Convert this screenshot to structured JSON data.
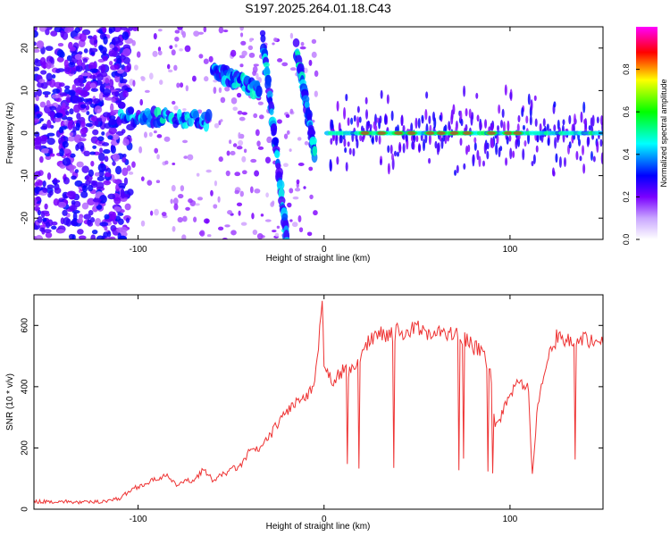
{
  "figure": {
    "title": "S197.2025.264.01.18.C43"
  },
  "chart_data": [
    {
      "type": "heatmap",
      "name": "spectrogram",
      "xlabel": "Height of straight line (km)",
      "ylabel": "Frequency (Hz)",
      "xlim": [
        -156,
        150
      ],
      "ylim": [
        -25,
        25
      ],
      "xticks": [
        -100,
        0,
        100
      ],
      "yticks": [
        -20,
        -10,
        0,
        10,
        20
      ],
      "colorbar": {
        "label": "Normalized spectral amplitude",
        "range": [
          0,
          1
        ],
        "ticks": [
          "0.0",
          "0.2",
          "0.4",
          "0.6",
          "0.8"
        ],
        "colormap": [
          "#ffffff",
          "#8000ff",
          "#0000ff",
          "#00ffff",
          "#00ff00",
          "#ffff00",
          "#ff0000",
          "#ff00ff"
        ]
      },
      "carrier": {
        "frequency": 0,
        "start_height": 2,
        "end_height": 150,
        "peak_heights": [
          22,
          31,
          40,
          47,
          57,
          63,
          70,
          77,
          90,
          99,
          104
        ]
      },
      "features": [
        {
          "x_range": [
            -110,
            -62
          ],
          "y_start": 4,
          "y_end": 3
        },
        {
          "x_range": [
            -60,
            -35
          ],
          "y_start": 15,
          "y_end": 10
        },
        {
          "x_range": [
            -33,
            -20
          ],
          "y_start": 22,
          "y_end": -25
        },
        {
          "x_range": [
            -15,
            -5
          ],
          "y_start": 20,
          "y_end": -5
        }
      ]
    },
    {
      "type": "line",
      "name": "snr",
      "xlabel": "Height of straight line (km)",
      "ylabel": "SNR (10 * v/v)",
      "xlim": [
        -156,
        150
      ],
      "ylim": [
        0,
        700
      ],
      "xticks": [
        -100,
        0,
        100
      ],
      "yticks": [
        0,
        200,
        400,
        600
      ],
      "color": "#ee3333",
      "series": [
        {
          "x": [
            -156,
            -140,
            -130,
            -120,
            -110,
            -102,
            -95,
            -90,
            -85,
            -80,
            -75,
            -70,
            -65,
            -60,
            -55,
            -50,
            -45,
            -40,
            -35,
            -30,
            -25,
            -20,
            -15,
            -10,
            -5,
            -1,
            0,
            5,
            10,
            15,
            20,
            25,
            30,
            35,
            40,
            45,
            50,
            55,
            60,
            65,
            70,
            75,
            80,
            85,
            90,
            92,
            95,
            100,
            105,
            110,
            112,
            115,
            120,
            125,
            130,
            135,
            140,
            145,
            150
          ],
          "y": [
            25,
            25,
            22,
            25,
            35,
            70,
            85,
            100,
            110,
            80,
            90,
            95,
            130,
            95,
            110,
            130,
            140,
            190,
            195,
            230,
            280,
            320,
            350,
            360,
            400,
            680,
            450,
            420,
            450,
            450,
            500,
            560,
            580,
            570,
            580,
            580,
            590,
            580,
            580,
            570,
            570,
            560,
            530,
            520,
            430,
            270,
            300,
            380,
            420,
            400,
            100,
            350,
            480,
            560,
            550,
            560,
            560,
            550,
            540
          ]
        }
      ]
    }
  ]
}
